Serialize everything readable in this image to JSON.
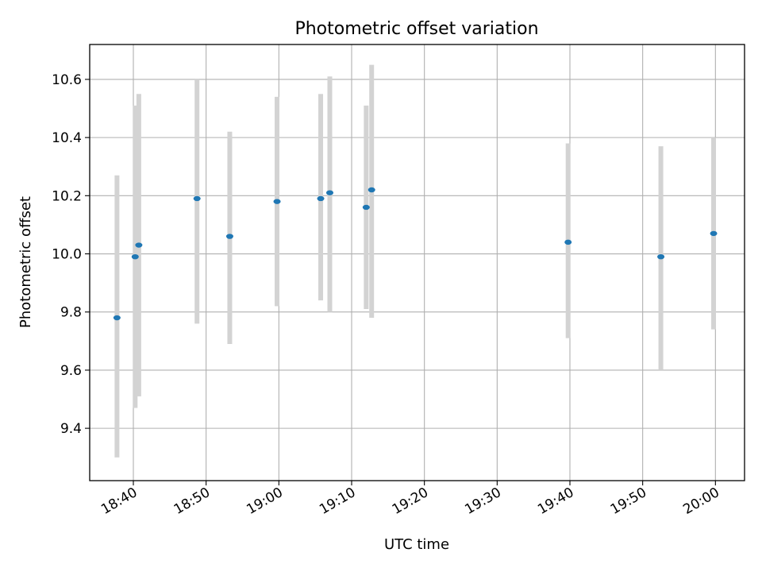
{
  "chart_data": {
    "type": "scatter",
    "title": "Photometric offset variation",
    "xlabel": "UTC time",
    "ylabel": "Photometric offset",
    "xlim": [
      "18:34:00",
      "20:04:00"
    ],
    "ylim": [
      9.22,
      10.72
    ],
    "grid": true,
    "x_ticks": [
      "18:40",
      "18:50",
      "19:00",
      "19:10",
      "19:20",
      "19:30",
      "19:40",
      "19:50",
      "20:00"
    ],
    "y_ticks": [
      "9.4",
      "9.6",
      "9.8",
      "10.0",
      "10.2",
      "10.4",
      "10.6"
    ],
    "marker_color": "#1f77b4",
    "errorbar_color": "#d3d3d3",
    "points": [
      {
        "x": "18:37:45",
        "y": 9.78,
        "yerr_low": 9.3,
        "yerr_high": 10.27
      },
      {
        "x": "18:40:15",
        "y": 9.99,
        "yerr_low": 9.47,
        "yerr_high": 10.51
      },
      {
        "x": "18:40:45",
        "y": 10.03,
        "yerr_low": 9.51,
        "yerr_high": 10.55
      },
      {
        "x": "18:48:45",
        "y": 10.19,
        "yerr_low": 9.76,
        "yerr_high": 10.6
      },
      {
        "x": "18:53:15",
        "y": 10.06,
        "yerr_low": 9.69,
        "yerr_high": 10.42
      },
      {
        "x": "18:59:45",
        "y": 10.18,
        "yerr_low": 9.82,
        "yerr_high": 10.54
      },
      {
        "x": "19:05:45",
        "y": 10.19,
        "yerr_low": 9.84,
        "yerr_high": 10.55
      },
      {
        "x": "19:07:00",
        "y": 10.21,
        "yerr_low": 9.8,
        "yerr_high": 10.61
      },
      {
        "x": "19:12:00",
        "y": 10.16,
        "yerr_low": 9.81,
        "yerr_high": 10.51
      },
      {
        "x": "19:12:45",
        "y": 10.22,
        "yerr_low": 9.78,
        "yerr_high": 10.65
      },
      {
        "x": "19:39:45",
        "y": 10.04,
        "yerr_low": 9.71,
        "yerr_high": 10.38
      },
      {
        "x": "19:52:30",
        "y": 9.99,
        "yerr_low": 9.6,
        "yerr_high": 10.37
      },
      {
        "x": "19:59:45",
        "y": 10.07,
        "yerr_low": 9.74,
        "yerr_high": 10.4
      }
    ]
  }
}
